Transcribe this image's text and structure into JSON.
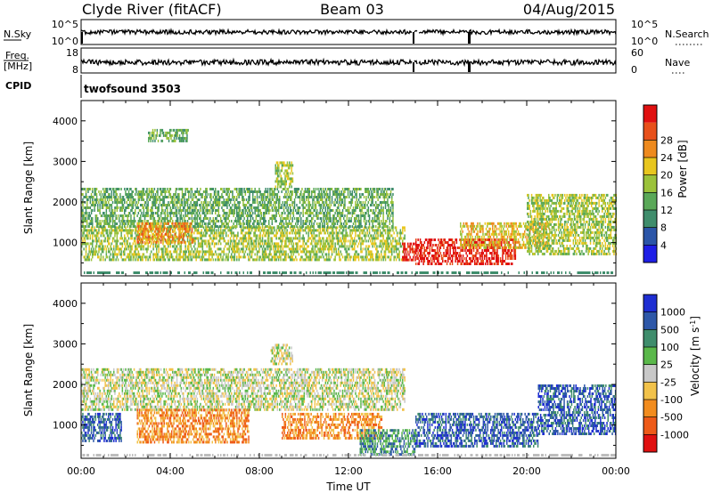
{
  "header": {
    "station": "Clyde River (fitACF)",
    "beam": "Beam 03",
    "date": "04/Aug/2015"
  },
  "panels": {
    "nsky": {
      "left_label": "N.Sky",
      "left_top": "10^5",
      "left_bottom": "10^0",
      "right_top": "10^5",
      "right_bottom": "10^0",
      "right_label": "N.Search"
    },
    "freq": {
      "left_label_1": "Freq.",
      "left_label_2": "[MHz]",
      "left_top": "18",
      "left_bottom": "8",
      "right_top": "60",
      "right_bottom": "0",
      "right_label": "Nave"
    },
    "cpid": {
      "label": "CPID",
      "value": "twofsound 3503"
    }
  },
  "colors": {
    "power": [
      "#1e1ee6",
      "#2b55a8",
      "#3f8d6c",
      "#5aa858",
      "#9bc23a",
      "#e8c61e",
      "#ee8a1e",
      "#e8501a",
      "#e01010"
    ],
    "velocity": [
      "#e01010",
      "#ee5a18",
      "#f28c1e",
      "#f2c24a",
      "#c8c8c8",
      "#5ab84a",
      "#3f8d6c",
      "#2e58a8",
      "#1e2ed2"
    ],
    "ground": "#bdbdbd"
  },
  "chart_data": [
    {
      "type": "heatmap",
      "name": "power",
      "xlabel": "",
      "ylabel": "Slant Range [km]",
      "colorbar_label": "Power [dB]",
      "colorbar_ticks": [
        "4",
        "8",
        "12",
        "16",
        "20",
        "24",
        "28"
      ],
      "yticks": [
        "1000",
        "2000",
        "3000",
        "4000"
      ],
      "ylim": [
        180,
        4500
      ],
      "xlim_hours": [
        0,
        24
      ],
      "bands": [
        {
          "start": 0.0,
          "end": 14.5,
          "rmin": 600,
          "rmax": 1400,
          "level": 4
        },
        {
          "start": 0.0,
          "end": 14.0,
          "rmin": 1400,
          "rmax": 2350,
          "level": 3
        },
        {
          "start": 2.5,
          "end": 5.0,
          "rmin": 1000,
          "rmax": 1500,
          "level": 6
        },
        {
          "start": 8.7,
          "end": 9.5,
          "rmin": 2400,
          "rmax": 3000,
          "level": 4
        },
        {
          "start": 14.4,
          "end": 15.0,
          "rmin": 600,
          "rmax": 1000,
          "level": 8
        },
        {
          "start": 15.0,
          "end": 19.5,
          "rmin": 450,
          "rmax": 1100,
          "level": 8
        },
        {
          "start": 17.0,
          "end": 21.0,
          "rmin": 900,
          "rmax": 1500,
          "level": 5
        },
        {
          "start": 20.0,
          "end": 24.0,
          "rmin": 700,
          "rmax": 2200,
          "level": 4
        },
        {
          "start": 3.0,
          "end": 4.8,
          "rmin": 3500,
          "rmax": 3800,
          "level": 3
        }
      ]
    },
    {
      "type": "heatmap",
      "name": "velocity",
      "xlabel": "Time UT",
      "ylabel": "Slant Range [km]",
      "colorbar_label": "Velocity [m s^-1]",
      "colorbar_ticks": [
        "-1000",
        "-500",
        "-100",
        "-25",
        "25",
        "100",
        "500",
        "1000"
      ],
      "yticks": [
        "1000",
        "2000",
        "3000",
        "4000"
      ],
      "xticks": [
        "00:00",
        "04:00",
        "08:00",
        "12:00",
        "16:00",
        "20:00",
        "00:00"
      ],
      "ylim": [
        180,
        4500
      ],
      "xlim_hours": [
        0,
        24
      ],
      "bands": [
        {
          "start": 0.0,
          "end": 14.5,
          "rmin": 1400,
          "rmax": 2400,
          "level": 4
        },
        {
          "start": 0.0,
          "end": 1.8,
          "rmin": 600,
          "rmax": 1300,
          "level": 7
        },
        {
          "start": 2.5,
          "end": 7.5,
          "rmin": 600,
          "rmax": 1400,
          "level": 2
        },
        {
          "start": 9.0,
          "end": 13.5,
          "rmin": 700,
          "rmax": 1300,
          "level": 2
        },
        {
          "start": 12.5,
          "end": 15.0,
          "rmin": 300,
          "rmax": 900,
          "level": 6
        },
        {
          "start": 15.0,
          "end": 20.5,
          "rmin": 500,
          "rmax": 1300,
          "level": 7
        },
        {
          "start": 20.5,
          "end": 24.0,
          "rmin": 800,
          "rmax": 2000,
          "level": 7
        },
        {
          "start": 8.5,
          "end": 9.5,
          "rmin": 2500,
          "rmax": 3000,
          "level": 4
        }
      ]
    }
  ]
}
